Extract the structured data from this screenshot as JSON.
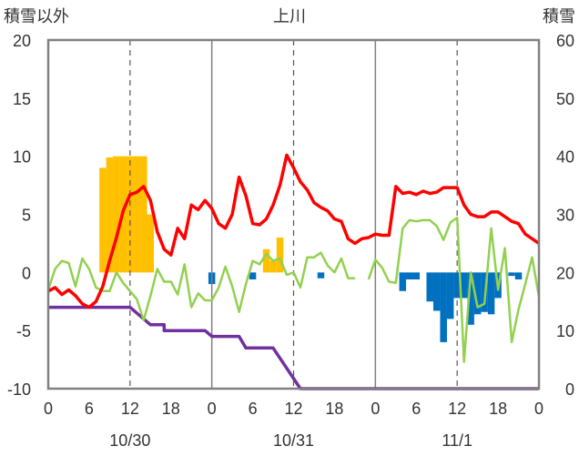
{
  "chart_data": {
    "type": "bar+line",
    "title": "上川",
    "left_axis_label": "積雪以外",
    "right_axis_label": "積雪",
    "ylim_left": [
      -10,
      20
    ],
    "yticks_left": [
      "20",
      "15",
      "10",
      "5",
      "0",
      "-5",
      "-10"
    ],
    "ylim_right": [
      0,
      60
    ],
    "yticks_right": [
      "60",
      "50",
      "40",
      "30",
      "20",
      "10",
      "0"
    ],
    "x_hours_total": 72,
    "xtick_labels": [
      "0",
      "6",
      "12",
      "18",
      "0",
      "6",
      "12",
      "18",
      "0",
      "6",
      "12",
      "18",
      "0"
    ],
    "date_labels": [
      {
        "label": "10/30",
        "hour": 12
      },
      {
        "label": "10/31",
        "hour": 36
      },
      {
        "label": "11/1",
        "hour": 60
      }
    ],
    "grid": "vertical dashed lines at hour 12 of each day; solid lines at day boundaries",
    "colors": {
      "temperature": "#ff0000",
      "wind": "#92d050",
      "snow_depth": "#7030a0",
      "positive_bar": "#ffc000",
      "negative_bar": "#0070c0",
      "frame": "#808080"
    },
    "temperature": [
      [
        0,
        -1.6
      ],
      [
        1,
        -1.3
      ],
      [
        2,
        -1.9
      ],
      [
        3,
        -1.5
      ],
      [
        4,
        -2.0
      ],
      [
        5,
        -2.7
      ],
      [
        6,
        -3.0
      ],
      [
        7,
        -2.5
      ],
      [
        8,
        -1.2
      ],
      [
        9,
        1.0
      ],
      [
        10,
        3.0
      ],
      [
        11,
        5.3
      ],
      [
        12,
        6.7
      ],
      [
        13,
        6.9
      ],
      [
        14,
        7.4
      ],
      [
        15,
        6.2
      ],
      [
        16,
        3.5
      ],
      [
        17,
        2.0
      ],
      [
        18,
        1.5
      ],
      [
        19,
        3.8
      ],
      [
        20,
        2.9
      ],
      [
        21,
        5.8
      ],
      [
        22,
        5.4
      ],
      [
        23,
        6.2
      ],
      [
        24,
        5.5
      ],
      [
        25,
        4.2
      ],
      [
        26,
        3.8
      ],
      [
        27,
        5.0
      ],
      [
        28,
        8.2
      ],
      [
        29,
        6.6
      ],
      [
        30,
        4.2
      ],
      [
        31,
        4.1
      ],
      [
        32,
        4.6
      ],
      [
        33,
        5.8
      ],
      [
        34,
        7.5
      ],
      [
        35,
        10.1
      ],
      [
        36,
        9.0
      ],
      [
        37,
        7.8
      ],
      [
        38,
        7.1
      ],
      [
        39,
        6.0
      ],
      [
        40,
        5.6
      ],
      [
        41,
        5.3
      ],
      [
        42,
        4.6
      ],
      [
        43,
        4.4
      ],
      [
        44,
        2.9
      ],
      [
        45,
        2.5
      ],
      [
        46,
        2.9
      ],
      [
        47,
        3.0
      ],
      [
        48,
        3.3
      ],
      [
        49,
        3.2
      ],
      [
        50,
        3.2
      ],
      [
        51,
        7.4
      ],
      [
        52,
        6.8
      ],
      [
        53,
        6.9
      ],
      [
        54,
        6.7
      ],
      [
        55,
        7.0
      ],
      [
        56,
        6.8
      ],
      [
        57,
        6.9
      ],
      [
        58,
        7.3
      ],
      [
        59,
        7.3
      ],
      [
        60,
        7.3
      ],
      [
        61,
        5.8
      ],
      [
        62,
        5.0
      ],
      [
        63,
        4.8
      ],
      [
        64,
        4.8
      ],
      [
        65,
        5.2
      ],
      [
        66,
        5.2
      ],
      [
        67,
        4.8
      ],
      [
        68,
        4.4
      ],
      [
        69,
        4.2
      ],
      [
        70,
        3.3
      ],
      [
        71,
        2.9
      ],
      [
        72,
        2.5
      ]
    ],
    "wind": [
      [
        0,
        -1.5
      ],
      [
        1,
        0.3
      ],
      [
        2,
        1.0
      ],
      [
        3,
        0.8
      ],
      [
        4,
        -1.2
      ],
      [
        5,
        1.2
      ],
      [
        6,
        0.3
      ],
      [
        7,
        -1.3
      ],
      [
        8,
        -1.6
      ],
      [
        9,
        -1.6
      ],
      [
        10,
        0.0
      ],
      [
        11,
        -0.9
      ],
      [
        12,
        -1.6
      ],
      [
        13,
        -2.3
      ],
      [
        14,
        -4.1
      ],
      [
        15,
        -2.0
      ],
      [
        16,
        0.3
      ],
      [
        17,
        -0.8
      ],
      [
        18,
        -0.8
      ],
      [
        19,
        -1.9
      ],
      [
        20,
        0.7
      ],
      [
        21,
        -3.0
      ],
      [
        22,
        -1.8
      ],
      [
        23,
        -2.4
      ],
      [
        24,
        -2.4
      ],
      [
        25,
        -1.3
      ],
      [
        26,
        0.5
      ],
      [
        27,
        -1.2
      ],
      [
        28,
        -3.4
      ],
      [
        29,
        -1.0
      ],
      [
        30,
        1.0
      ],
      [
        31,
        0.7
      ],
      [
        32,
        1.6
      ],
      [
        33,
        1.0
      ],
      [
        34,
        1.2
      ],
      [
        35,
        -0.2
      ],
      [
        36,
        0.0
      ],
      [
        37,
        -1.3
      ],
      [
        38,
        1.3
      ],
      [
        39,
        1.3
      ],
      [
        40,
        1.7
      ],
      [
        41,
        0.6
      ],
      [
        42,
        0.0
      ],
      [
        43,
        1.2
      ],
      [
        44,
        -0.5
      ],
      [
        45,
        -0.5
      ],
      [
        46,
        null
      ],
      [
        47,
        -0.6
      ],
      [
        48,
        1.1
      ],
      [
        49,
        0.4
      ],
      [
        50,
        -0.8
      ],
      [
        51,
        -0.9
      ],
      [
        52,
        3.8
      ],
      [
        53,
        4.5
      ],
      [
        54,
        4.4
      ],
      [
        55,
        4.5
      ],
      [
        56,
        4.5
      ],
      [
        57,
        4.0
      ],
      [
        58,
        2.8
      ],
      [
        59,
        4.3
      ],
      [
        60,
        4.7
      ],
      [
        61,
        -7.7
      ],
      [
        62,
        0.0
      ],
      [
        63,
        -3.0
      ],
      [
        64,
        -2.7
      ],
      [
        65,
        3.8
      ],
      [
        66,
        -1.5
      ],
      [
        67,
        2.1
      ],
      [
        68,
        -6.0
      ],
      [
        69,
        -3.2
      ],
      [
        70,
        -1.0
      ],
      [
        71,
        1.3
      ],
      [
        72,
        -2.1
      ]
    ],
    "snow_depth": [
      [
        0,
        14
      ],
      [
        12,
        14
      ],
      [
        15,
        11
      ],
      [
        17,
        11
      ],
      [
        17,
        10
      ],
      [
        23,
        10
      ],
      [
        24,
        9
      ],
      [
        28,
        9
      ],
      [
        29,
        7
      ],
      [
        33,
        7
      ],
      [
        37,
        0
      ],
      [
        72,
        0
      ]
    ],
    "bars": [
      [
        8,
        9.0
      ],
      [
        9,
        9.9
      ],
      [
        10,
        10.0
      ],
      [
        11,
        10.0
      ],
      [
        12,
        10.0
      ],
      [
        13,
        10.0
      ],
      [
        14,
        10.0
      ],
      [
        15,
        5.0
      ],
      [
        24,
        -1.0
      ],
      [
        30,
        -0.6
      ],
      [
        32,
        2.0
      ],
      [
        33,
        1.0
      ],
      [
        34,
        3.0
      ],
      [
        40,
        -0.5
      ],
      [
        52,
        -1.6
      ],
      [
        53,
        -0.6
      ],
      [
        54,
        -0.6
      ],
      [
        56,
        -2.5
      ],
      [
        57,
        -3.3
      ],
      [
        58,
        -6.0
      ],
      [
        59,
        -4.0
      ],
      [
        60,
        -2.2
      ],
      [
        61,
        -2.2
      ],
      [
        62,
        -4.5
      ],
      [
        63,
        -3.6
      ],
      [
        64,
        -3.4
      ],
      [
        65,
        -3.6
      ],
      [
        66,
        -2.2
      ],
      [
        68,
        -0.3
      ],
      [
        69,
        -0.6
      ]
    ]
  }
}
